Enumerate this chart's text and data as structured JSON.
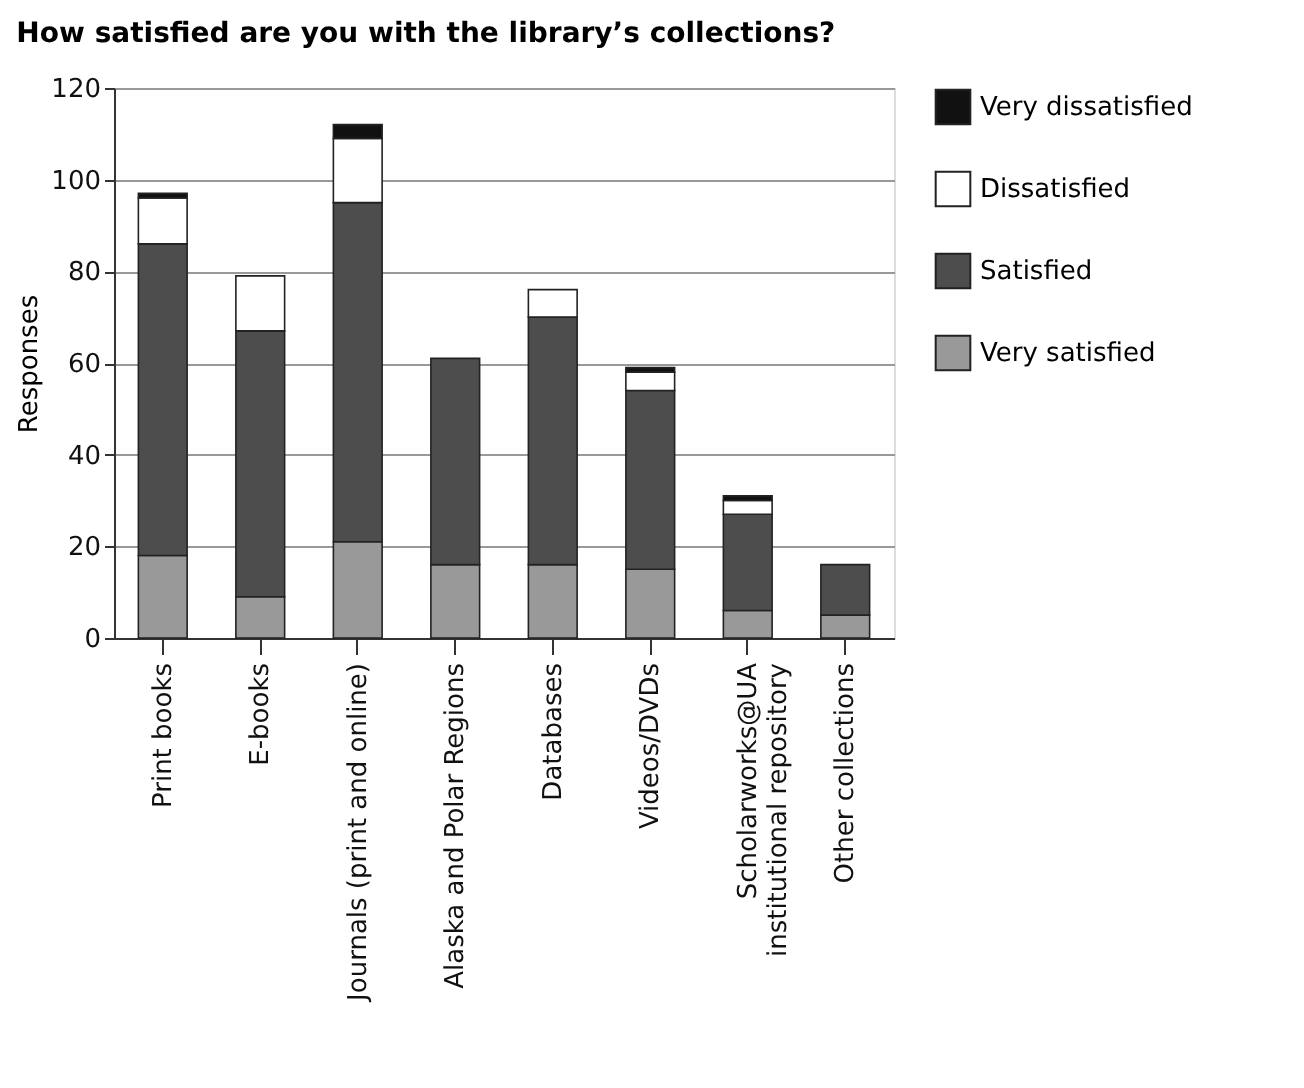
{
  "chart_data": {
    "type": "bar",
    "title": "How satisfied are you with the library’s collections?",
    "ylabel": "Responses",
    "categories": [
      "Print books",
      "E-books",
      "Journals (print and online)",
      "Alaska and Polar Regions",
      "Databases",
      "Videos/DVDs",
      "Scholarworks@UA institutional repository",
      "Other collections"
    ],
    "stacked": true,
    "series": [
      {
        "name": "Very satisfied",
        "color": "#999999",
        "values": [
          18,
          9,
          21,
          16,
          16,
          15,
          6,
          5
        ]
      },
      {
        "name": "Satisfied",
        "color": "#4d4d4d",
        "values": [
          68,
          58,
          74,
          45,
          54,
          39,
          21,
          11
        ]
      },
      {
        "name": "Dissatisfied",
        "color": "#ffffff",
        "values": [
          10,
          12,
          14,
          0,
          6,
          4,
          3,
          0
        ]
      },
      {
        "name": "Very dissatisfied",
        "color": "#111111",
        "values": [
          1,
          0,
          3,
          0,
          0,
          1,
          1,
          0
        ]
      }
    ],
    "ylim": [
      0,
      120
    ],
    "yticks": [
      0,
      20,
      40,
      60,
      80,
      100,
      120
    ],
    "grid": "y",
    "legend": "right"
  }
}
